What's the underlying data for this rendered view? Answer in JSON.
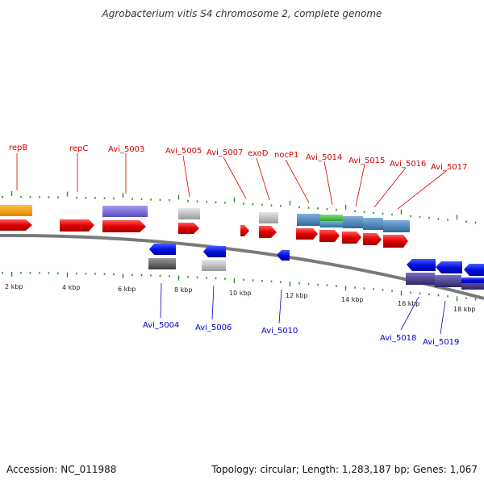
{
  "title": "Agrobacterium vitis S4 chromosome 2, complete genome",
  "footer": {
    "accession": "Accession: NC_011988",
    "summary": "Topology: circular; Length: 1,283,187 bp; Genes: 1,067"
  },
  "ruler": {
    "labels": [
      "2 kbp",
      "4 kbp",
      "6 kbp",
      "8 kbp",
      "10 kbp",
      "12 kbp",
      "14 kbp",
      "16 kbp",
      "18 kbp"
    ]
  },
  "genes_forward": [
    {
      "label": "repB",
      "color": "#e53935"
    },
    {
      "label": "repC",
      "color": "#e53935"
    },
    {
      "label": "Avi_5003",
      "color": "#e53935"
    },
    {
      "label": "Avi_5005",
      "color": "#e53935"
    },
    {
      "label": "Avi_5007",
      "color": "#e53935"
    },
    {
      "label": "exoD",
      "color": "#e53935"
    },
    {
      "label": "nocP1",
      "color": "#e53935"
    },
    {
      "label": "Avi_5014",
      "color": "#e53935"
    },
    {
      "label": "Avi_5015",
      "color": "#e53935"
    },
    {
      "label": "Avi_5016",
      "color": "#e53935"
    },
    {
      "label": "Avi_5017",
      "color": "#e53935"
    }
  ],
  "genes_reverse": [
    {
      "label": "Avi_5004",
      "color": "#1f3ef0"
    },
    {
      "label": "Avi_5006",
      "color": "#1f3ef0"
    },
    {
      "label": "Avi_5010",
      "color": "#1f3ef0"
    },
    {
      "label": "Avi_5018",
      "color": "#1f3ef0"
    },
    {
      "label": "Avi_5019",
      "color": "#1f3ef0"
    }
  ],
  "colors": {
    "forward_cds": "#e53935",
    "reverse_cds": "#1f3ef0",
    "forward_label": "#d40000",
    "reverse_label": "#0000cc",
    "backbone": "#777777",
    "tick": "#2e8b2e",
    "feature_orange": "#f39c12",
    "feature_purple": "#7b68d8",
    "feature_grey": "#bdbdbd",
    "feature_steelblue": "#4a86b8",
    "feature_green": "#3cb83c",
    "feature_darkpurple": "#4b3f8c",
    "feature_darkgrey": "#555555"
  }
}
